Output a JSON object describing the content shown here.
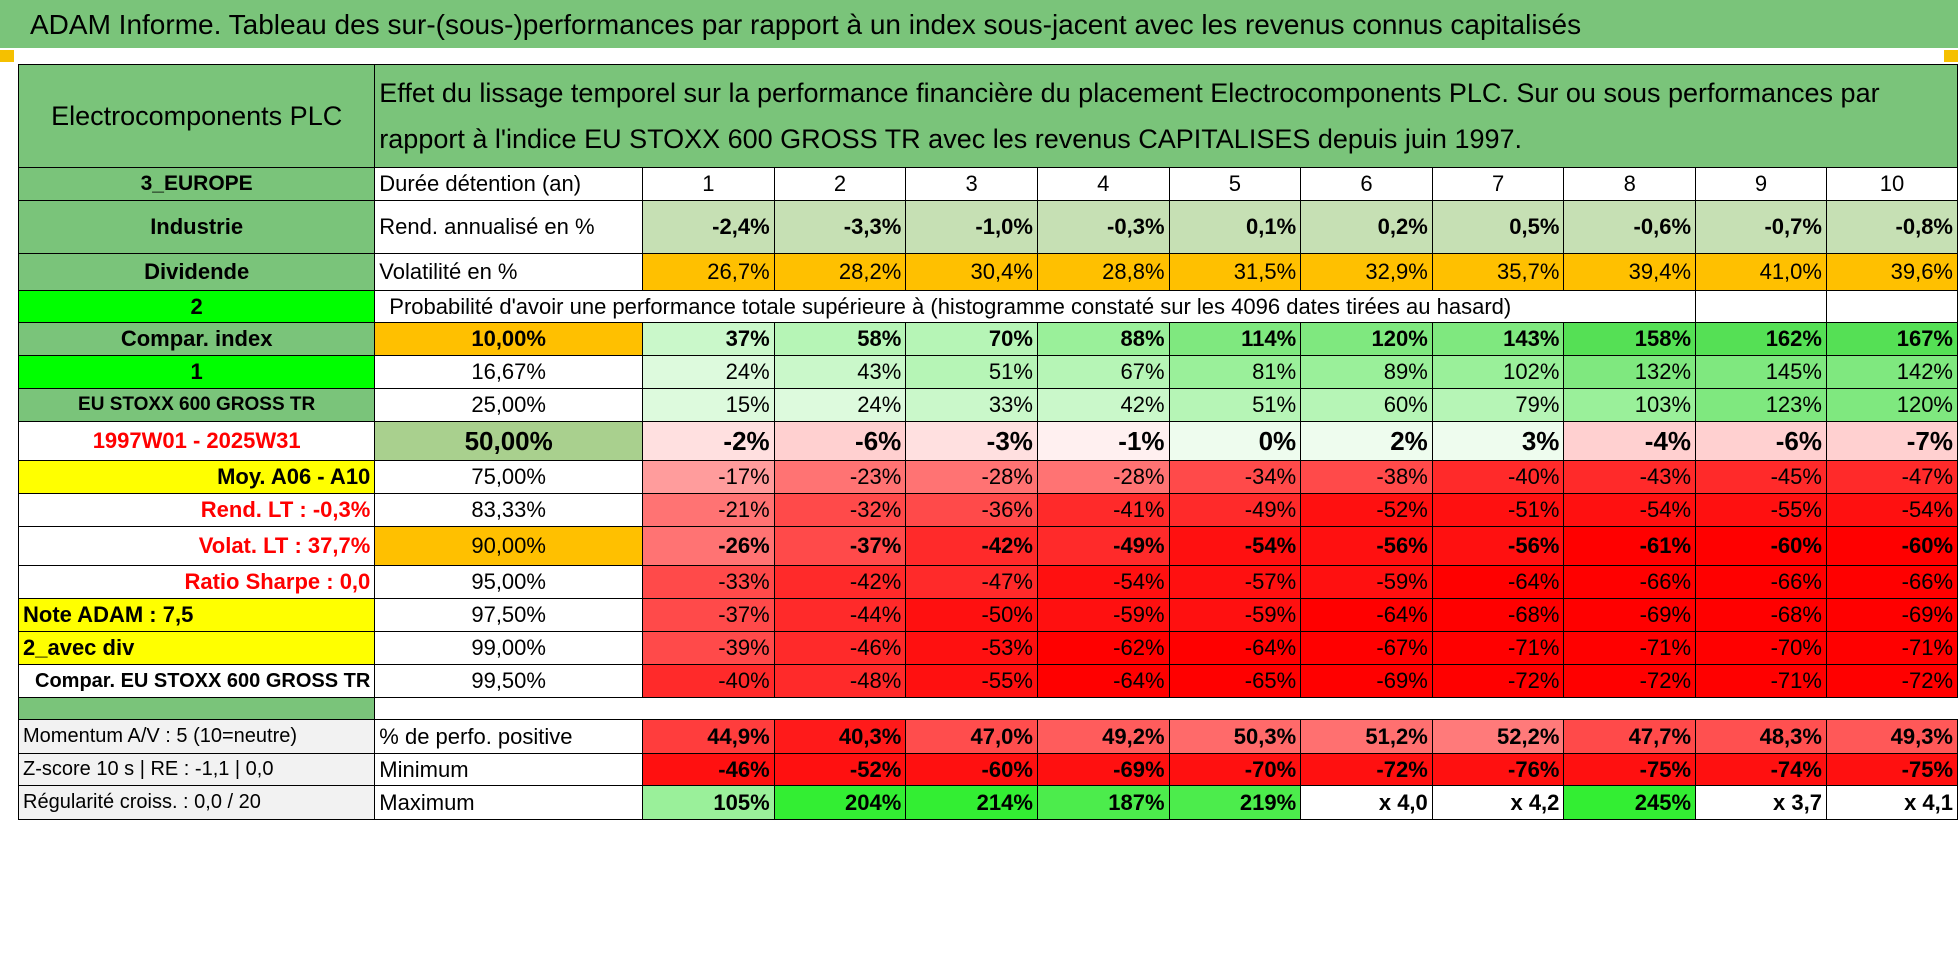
{
  "banner_title": "ADAM Informe. Tableau des sur-(sous-)performances par rapport à un index sous-jacent avec les revenus connus capitalisés",
  "company": "Electrocomponents PLC",
  "header_description": "Effet du lissage temporel sur la performance financière du placement Electrocomponents PLC. Sur ou sous performances par rapport à l'indice EU STOXX 600 GROSS TR avec les revenus CAPITALISES depuis juin 1997.",
  "left_labels": {
    "region": "3_EUROPE",
    "sector": "Industrie",
    "dividend": "Dividende",
    "param_2": "2",
    "compar_index": "Compar. index",
    "param_1": "1",
    "index_name": "EU STOXX 600 GROSS TR",
    "period": "1997W01 - 2025W31",
    "moy": "Moy. A06 - A10",
    "rend_lt": "Rend. LT :    -0,3%",
    "volat_lt": "Volat. LT :    37,7%",
    "ratio_sharpe": "Ratio Sharpe :     0,0",
    "note_adam": "Note ADAM : 7,5",
    "avec_div": "2_avec div",
    "compar_full": "Compar. EU STOXX 600 GROSS TR"
  },
  "row_labels": {
    "duration": "Durée détention (an)",
    "rend": "Rend. annualisé en %",
    "volat": "Volatilité en %",
    "probability": "Probabilité d'avoir une performance totale supérieure à (histogramme constaté sur les 4096 dates tirées au hasard)"
  },
  "years": [
    "1",
    "2",
    "3",
    "4",
    "5",
    "6",
    "7",
    "8",
    "9",
    "10"
  ],
  "rend_values": [
    "-2,4%",
    "-3,3%",
    "-1,0%",
    "-0,3%",
    "0,1%",
    "0,2%",
    "0,5%",
    "-0,6%",
    "-0,7%",
    "-0,8%"
  ],
  "volat_values": [
    "26,7%",
    "28,2%",
    "30,4%",
    "28,8%",
    "31,5%",
    "32,9%",
    "35,7%",
    "39,4%",
    "41,0%",
    "39,6%"
  ],
  "percentile_rows": [
    {
      "pct": "10,00%",
      "values": [
        "37%",
        "58%",
        "70%",
        "88%",
        "114%",
        "120%",
        "143%",
        "158%",
        "162%",
        "167%"
      ]
    },
    {
      "pct": "16,67%",
      "values": [
        "24%",
        "43%",
        "51%",
        "67%",
        "81%",
        "89%",
        "102%",
        "132%",
        "145%",
        "142%"
      ]
    },
    {
      "pct": "25,00%",
      "values": [
        "15%",
        "24%",
        "33%",
        "42%",
        "51%",
        "60%",
        "79%",
        "103%",
        "123%",
        "120%"
      ]
    },
    {
      "pct": "50,00%",
      "values": [
        "-2%",
        "-6%",
        "-3%",
        "-1%",
        "0%",
        "2%",
        "3%",
        "-4%",
        "-6%",
        "-7%"
      ]
    },
    {
      "pct": "75,00%",
      "values": [
        "-17%",
        "-23%",
        "-28%",
        "-28%",
        "-34%",
        "-38%",
        "-40%",
        "-43%",
        "-45%",
        "-47%"
      ]
    },
    {
      "pct": "83,33%",
      "values": [
        "-21%",
        "-32%",
        "-36%",
        "-41%",
        "-49%",
        "-52%",
        "-51%",
        "-54%",
        "-55%",
        "-54%"
      ]
    },
    {
      "pct": "90,00%",
      "values": [
        "-26%",
        "-37%",
        "-42%",
        "-49%",
        "-54%",
        "-56%",
        "-56%",
        "-61%",
        "-60%",
        "-60%"
      ]
    },
    {
      "pct": "95,00%",
      "values": [
        "-33%",
        "-42%",
        "-47%",
        "-54%",
        "-57%",
        "-59%",
        "-64%",
        "-66%",
        "-66%",
        "-66%"
      ]
    },
    {
      "pct": "97,50%",
      "values": [
        "-37%",
        "-44%",
        "-50%",
        "-59%",
        "-59%",
        "-64%",
        "-68%",
        "-69%",
        "-68%",
        "-69%"
      ]
    },
    {
      "pct": "99,00%",
      "values": [
        "-39%",
        "-46%",
        "-53%",
        "-62%",
        "-64%",
        "-67%",
        "-71%",
        "-71%",
        "-70%",
        "-71%"
      ]
    },
    {
      "pct": "99,50%",
      "values": [
        "-40%",
        "-48%",
        "-55%",
        "-64%",
        "-65%",
        "-69%",
        "-72%",
        "-72%",
        "-71%",
        "-72%"
      ]
    }
  ],
  "bottom": {
    "momentum": "Momentum A/V : 5 (10=neutre)",
    "zscore": "Z-score 10 s | RE : -1,1 | 0,0",
    "regularite": "Régularité croiss. : 0,0 / 20",
    "positive_label": "% de perfo. positive",
    "minimum_label": "Minimum",
    "maximum_label": "Maximum",
    "positive_values": [
      "44,9%",
      "40,3%",
      "47,0%",
      "49,2%",
      "50,3%",
      "51,2%",
      "52,2%",
      "47,7%",
      "48,3%",
      "49,3%"
    ],
    "minimum_values": [
      "-46%",
      "-52%",
      "-60%",
      "-69%",
      "-70%",
      "-72%",
      "-76%",
      "-75%",
      "-74%",
      "-75%"
    ],
    "maximum_values": [
      "105%",
      "204%",
      "214%",
      "187%",
      "219%",
      "x 4,0",
      "x 4,2",
      "245%",
      "x 3,7",
      "x 4,1"
    ]
  },
  "colors": {
    "header_green": "#7ac47a",
    "bright_green": "#00ff00",
    "orange": "#ffc000",
    "yellow": "#ffff00",
    "red_text": "#ff0000",
    "rend_green": "#c6e0b4"
  }
}
